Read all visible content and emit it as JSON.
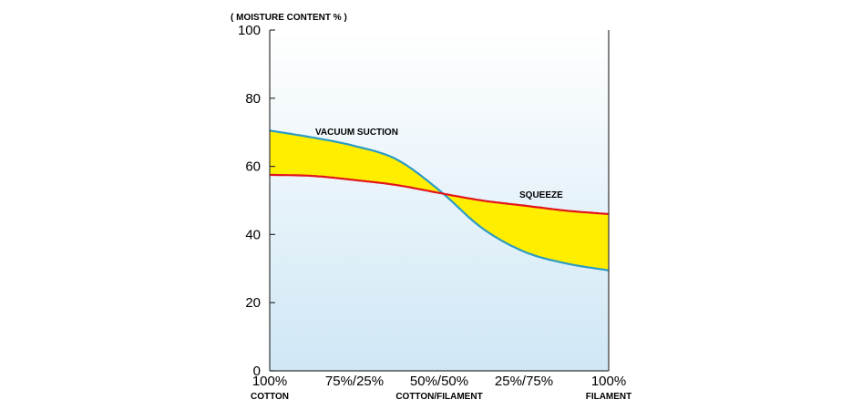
{
  "chart_data": {
    "type": "line",
    "ylabel": "( MOISTURE CONTENT % )",
    "ylim": [
      0,
      100
    ],
    "yticks": [
      0,
      20,
      40,
      60,
      80,
      100
    ],
    "x": [
      0,
      1,
      2,
      3,
      4
    ],
    "xtick_labels": [
      "100%",
      "75%/25%",
      "50%/50%",
      "25%/75%",
      "100%"
    ],
    "xtick_sublabels": [
      "COTTON",
      "",
      "COTTON/FILAMENT",
      "",
      "FILAMENT"
    ],
    "series": [
      {
        "name": "VACUUM SUCTION",
        "color": "#2b9bc4",
        "x": [
          0,
          0.5,
          1,
          1.5,
          2,
          2.5,
          3,
          3.5,
          4
        ],
        "values": [
          70.5,
          68.5,
          66,
          62,
          53,
          42,
          35,
          31.5,
          29.5
        ]
      },
      {
        "name": "SQUEEZE",
        "color": "#e2141b",
        "x": [
          0,
          0.5,
          1,
          1.5,
          2,
          2.5,
          3,
          3.5,
          4
        ],
        "values": [
          57.5,
          57.2,
          56,
          54.5,
          52.2,
          50,
          48.5,
          47,
          46
        ]
      }
    ],
    "fill_between_color": "#ffee00",
    "background_gradient": [
      "#ffffff",
      "#cfe7f5"
    ],
    "grid": false
  }
}
